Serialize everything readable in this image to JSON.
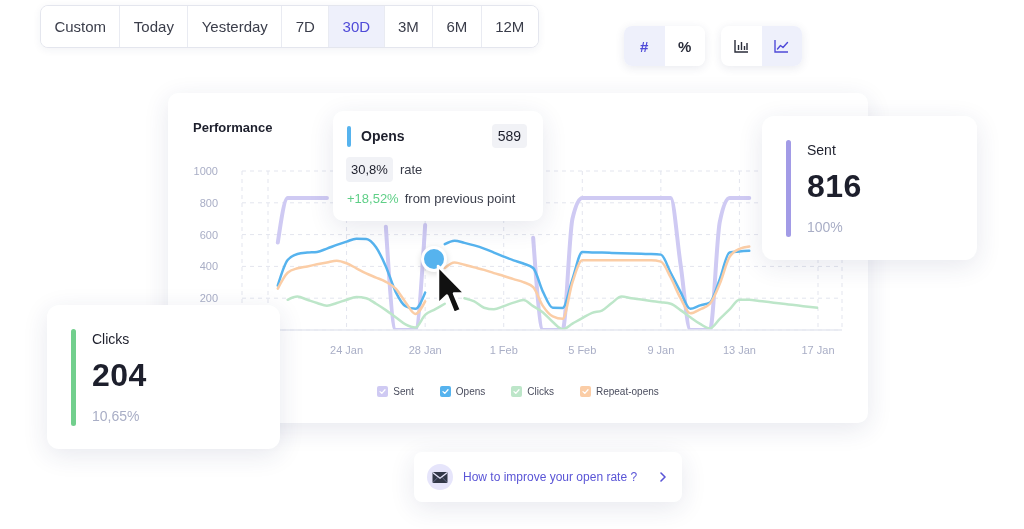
{
  "chart_data": [
    {
      "type": "other",
      "categories": [
        "Custom",
        "Today",
        "Yesterday",
        "7D",
        "30D",
        "3M",
        "6M",
        "12M"
      ]
    },
    {
      "type": "other",
      "categories": [
        "#",
        "%"
      ]
    },
    {
      "type": "line",
      "title": "Performance",
      "categories": [
        null,
        null,
        null,
        null,
        null,
        null,
        null,
        null,
        "24 Jan",
        null,
        null,
        null,
        null,
        null,
        null,
        null,
        "28 Jan",
        null,
        null,
        null,
        null,
        null,
        null,
        null,
        "1 Feb",
        null,
        null,
        null,
        null,
        null,
        null,
        null,
        "5 Feb",
        null,
        null,
        null,
        null,
        null,
        null,
        null,
        "9 Jan",
        null,
        null,
        null,
        null,
        null,
        null,
        null,
        "13 Jan",
        null,
        null,
        null,
        null,
        null,
        null,
        null,
        "17 Jan"
      ],
      "ylim": [
        0,
        1000
      ],
      "yticks": [
        200,
        400,
        600,
        800,
        1000
      ],
      "grid": true,
      "legend": "bottom",
      "series": [
        {
          "name": "Sent",
          "color": "#cfcaf3",
          "values": [
            null,
            550,
            830,
            830,
            830,
            830,
            830,
            null,
            null,
            null,
            null,
            null,
            650,
            0,
            0,
            0,
            660,
            null,
            null,
            null,
            null,
            null,
            null,
            null,
            null,
            null,
            null,
            580,
            0,
            0,
            0,
            700,
            830,
            830,
            830,
            830,
            830,
            830,
            830,
            830,
            830,
            830,
            415,
            0,
            0,
            0,
            680,
            830,
            830,
            830,
            null,
            null,
            null,
            null,
            null,
            null,
            null
          ]
        },
        {
          "name": "Opens",
          "color": "#56b3ee",
          "values": [
            null,
            280,
            440,
            478,
            487,
            491,
            512,
            535,
            556,
            574,
            572,
            520,
            400,
            240,
            150,
            133,
            235,
            null,
            540,
            562,
            548,
            532,
            512,
            487,
            462,
            438,
            418,
            390,
            240,
            140,
            139,
            320,
            490,
            488,
            487,
            485,
            483,
            481,
            479,
            478,
            474,
            360,
            240,
            133,
            155,
            173,
            320,
            488,
            494,
            498,
            null,
            null,
            null,
            null,
            null,
            null,
            null
          ]
        },
        {
          "name": "Clicks",
          "color": "#bde6c9",
          "values": [
            null,
            null,
            190,
            210,
            190,
            170,
            153,
            170,
            190,
            207,
            200,
            165,
            125,
            80,
            35,
            15,
            95,
            130,
            165,
            null,
            200,
            180,
            140,
            130,
            150,
            172,
            188,
            150,
            110,
            50,
            5,
            40,
            75,
            108,
            122,
            170,
            210,
            200,
            192,
            183,
            175,
            165,
            125,
            80,
            38,
            10,
            70,
            130,
            190,
            190,
            183,
            176,
            168,
            161,
            154,
            146,
            139
          ]
        },
        {
          "name": "Repeat-opens",
          "color": "#fbcda6",
          "values": [
            null,
            260,
            360,
            388,
            400,
            413,
            425,
            436,
            420,
            388,
            356,
            330,
            303,
            260,
            175,
            101,
            180,
            null,
            390,
            425,
            410,
            394,
            378,
            358,
            340,
            320,
            301,
            269,
            150,
            85,
            70,
            300,
            438,
            438,
            438,
            438,
            438,
            438,
            438,
            438,
            430,
            330,
            200,
            105,
            130,
            165,
            290,
            460,
            510,
            525,
            null,
            null,
            null,
            null,
            null,
            null,
            null
          ]
        }
      ]
    },
    {
      "type": "other",
      "title": "Opens",
      "color": "#56b3ee",
      "annotations": [
        "589",
        "30,8%",
        "rate",
        "+18,52%",
        "from previous point"
      ]
    },
    {
      "type": "other",
      "title": "Sent",
      "color": "#a29be6",
      "annotations": [
        "816",
        "100%"
      ]
    },
    {
      "type": "other",
      "title": "Clicks",
      "color": "#72cf8d",
      "annotations": [
        "204",
        "10,65%"
      ]
    },
    {
      "type": "other",
      "annotations": [
        "How to improve your open rate ?"
      ]
    }
  ]
}
